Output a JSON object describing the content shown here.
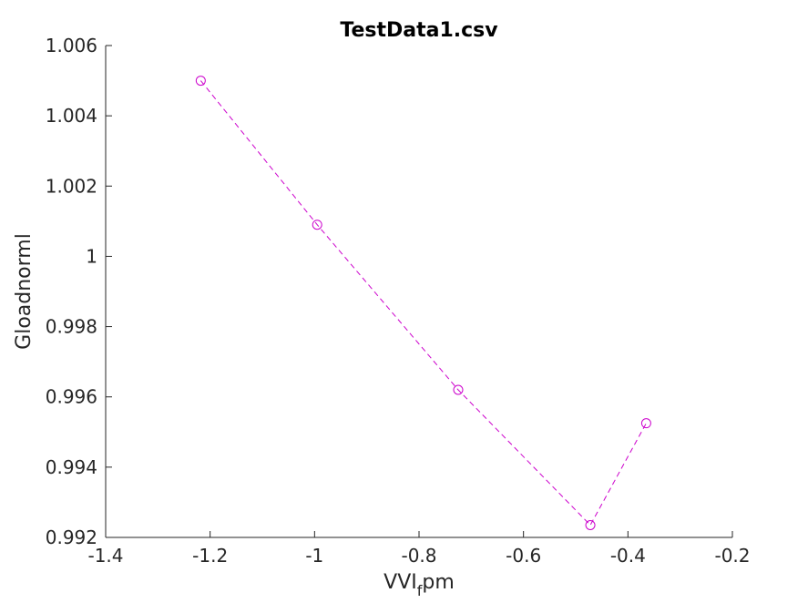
{
  "chart_data": {
    "type": "line",
    "title": "TestData1.csv",
    "xlabel": {
      "base": "VVI",
      "subscript": "f",
      "rest": "pm"
    },
    "ylabel": "Gloadnorml",
    "xlim": [
      -1.4,
      -0.2
    ],
    "ylim": [
      0.992,
      1.006
    ],
    "xticks": [
      -1.4,
      -1.2,
      -1.0,
      -0.8,
      -0.6,
      -0.4,
      -0.2
    ],
    "xtick_labels": [
      "-1.4",
      "-1.2",
      "-1",
      "-0.8",
      "-0.6",
      "-0.4",
      "-0.2"
    ],
    "yticks": [
      0.992,
      0.994,
      0.996,
      0.998,
      1.0,
      1.002,
      1.004,
      1.006
    ],
    "ytick_labels": [
      "0.992",
      "0.994",
      "0.996",
      "0.998",
      "1",
      "1.002",
      "1.004",
      "1.006"
    ],
    "grid": false,
    "series": [
      {
        "color": "#cc00cc",
        "line_style": "dashed",
        "marker": "circle",
        "x": [
          -1.218,
          -0.995,
          -0.725,
          -0.472,
          -0.365
        ],
        "y": [
          1.005,
          1.0009,
          0.9962,
          0.99235,
          0.99525
        ]
      }
    ]
  },
  "colors": {
    "axis": "#262626",
    "series": "#cc00cc"
  }
}
